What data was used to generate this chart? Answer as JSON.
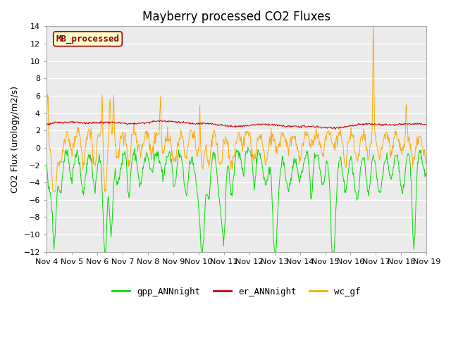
{
  "title": "Mayberry processed CO2 Fluxes",
  "ylabel": "CO2 Flux (urology/m2/s)",
  "ylim": [
    -12,
    14
  ],
  "yticks": [
    -12,
    -10,
    -8,
    -6,
    -4,
    -2,
    0,
    2,
    4,
    6,
    8,
    10,
    12,
    14
  ],
  "xtick_labels": [
    "Nov 4",
    "Nov 5",
    "Nov 6",
    "Nov 7",
    "Nov 8",
    "Nov 9",
    "Nov 10",
    "Nov 11",
    "Nov 12",
    "Nov 13",
    "Nov 14",
    "Nov 15",
    "Nov 16",
    "Nov 17",
    "Nov 18",
    "Nov 19"
  ],
  "color_gpp": "#00dd00",
  "color_er": "#cc0000",
  "color_wc": "#ffaa00",
  "legend_label_gpp": "gpp_ANNnight",
  "legend_label_er": "er_ANNnight",
  "legend_label_wc": "wc_gf",
  "inset_label": "MB_processed",
  "inset_facecolor": "#ffffcc",
  "inset_edgecolor": "#aa0000",
  "inset_textcolor": "#880000",
  "plot_bg_color": "#ebebeb",
  "linewidth": 0.7,
  "title_fontsize": 12,
  "axis_fontsize": 9,
  "tick_fontsize": 8,
  "legend_fontsize": 9,
  "figsize": [
    6.4,
    4.8
  ],
  "dpi": 100
}
